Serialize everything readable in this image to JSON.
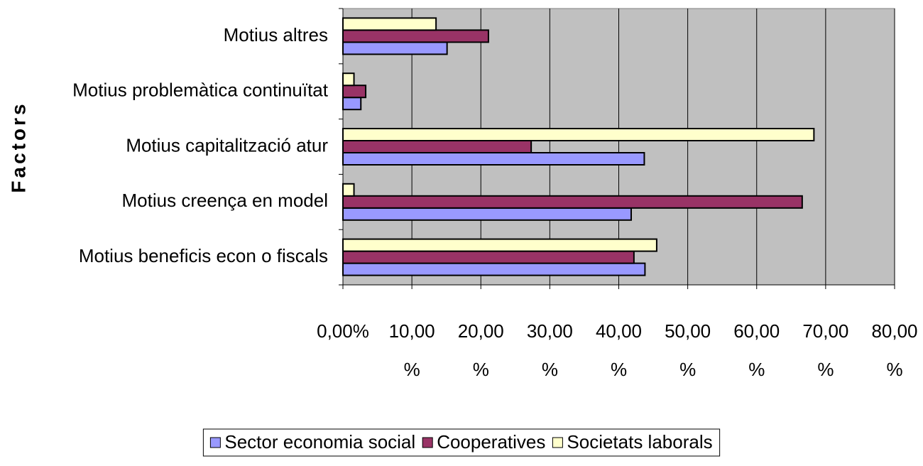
{
  "chart_data": {
    "type": "hbar",
    "y_label": "Factors",
    "categories": [
      "Motius beneficis econ o fiscals",
      "Motius creença en model",
      "Motius capitalització atur",
      "Motius problemàtica continuïtat",
      "Motius altres"
    ],
    "series": [
      {
        "name": "Sector economia social",
        "color": "#9999ff",
        "values": [
          43.8,
          41.8,
          43.7,
          2.6,
          15.1
        ]
      },
      {
        "name": "Cooperatives",
        "color": "#993366",
        "values": [
          42.2,
          66.6,
          27.3,
          3.3,
          21.1
        ]
      },
      {
        "name": "Societats laborals",
        "color": "#ffffcc",
        "values": [
          45.5,
          1.6,
          68.3,
          1.6,
          13.5
        ]
      }
    ],
    "xlim": [
      0,
      80
    ],
    "xticks": [
      {
        "value": 0,
        "label": "0,00%"
      },
      {
        "value": 10,
        "label": "10,00 %"
      },
      {
        "value": 20,
        "label": "20,00 %"
      },
      {
        "value": 30,
        "label": "30,00 %"
      },
      {
        "value": 40,
        "label": "40,00 %"
      },
      {
        "value": 50,
        "label": "50,00 %"
      },
      {
        "value": 60,
        "label": "60,00 %"
      },
      {
        "value": 70,
        "label": "70,00 %"
      },
      {
        "value": 80,
        "label": "80,00 %"
      }
    ],
    "grid": true,
    "plot_background": "#c0c0c0",
    "legend": "bottom"
  }
}
